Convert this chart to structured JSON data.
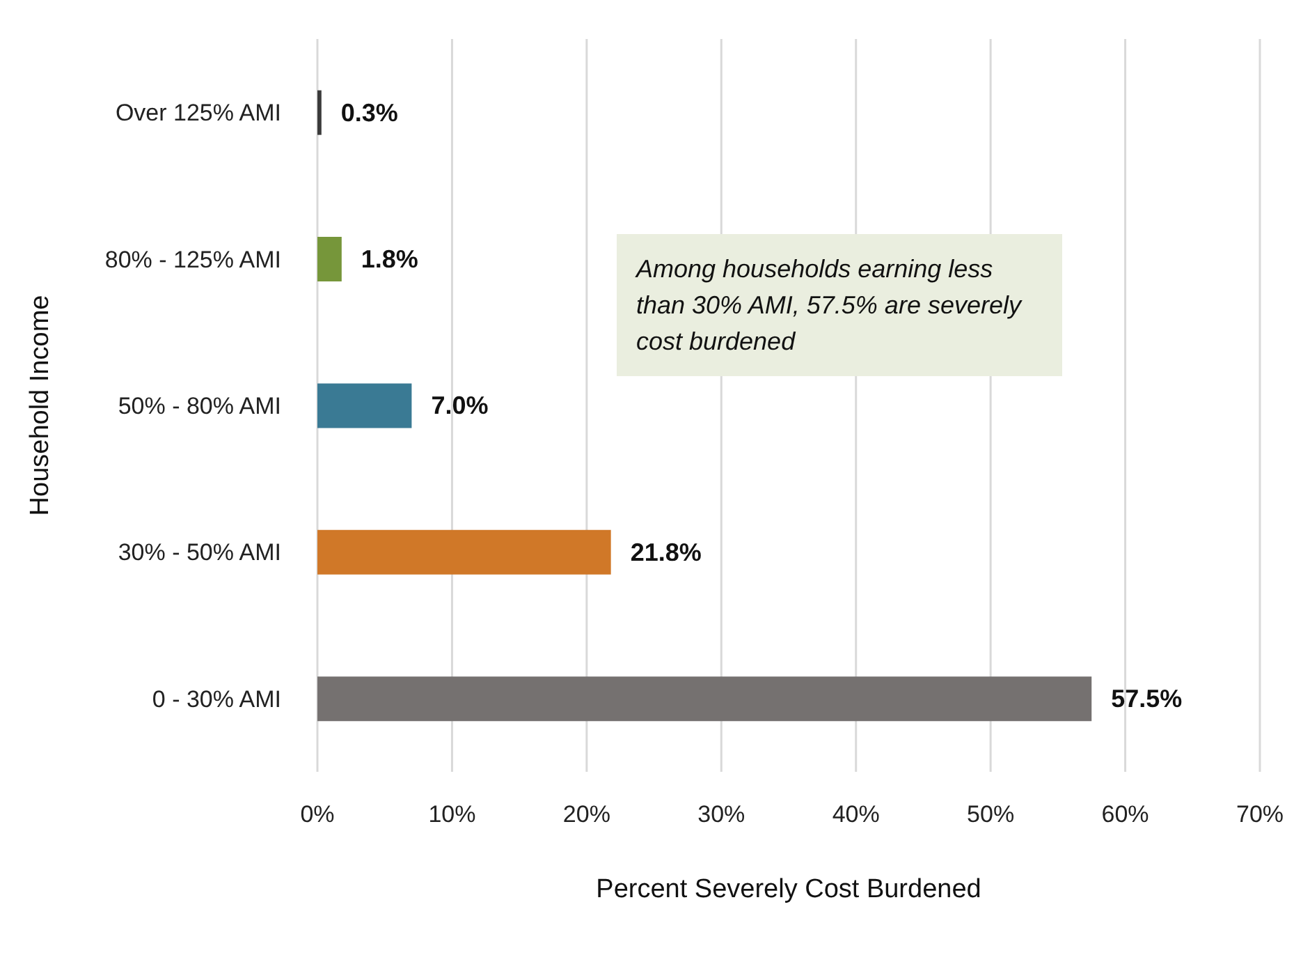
{
  "chart_data": {
    "type": "bar",
    "orientation": "horizontal",
    "xlabel": "Percent Severely Cost Burdened",
    "ylabel": "Household Income",
    "categories": [
      "Over 125% AMI",
      "80% - 125% AMI",
      "50% - 80% AMI",
      "30% - 50% AMI",
      "0 - 30% AMI"
    ],
    "values": [
      0.3,
      1.8,
      7.0,
      21.8,
      57.5
    ],
    "colors": [
      "#3b3b3b",
      "#76963a",
      "#3a7a94",
      "#d07828",
      "#757170"
    ],
    "value_labels": [
      "0.3%",
      "1.8%",
      "7.0%",
      "21.8%",
      "57.5%"
    ],
    "xlim": [
      0,
      70
    ],
    "xticks": [
      {
        "value": 0,
        "label": "0%"
      },
      {
        "value": 10,
        "label": "10%"
      },
      {
        "value": 20,
        "label": "20%"
      },
      {
        "value": 30,
        "label": "30%"
      },
      {
        "value": 40,
        "label": "40%"
      },
      {
        "value": 50,
        "label": "50%"
      },
      {
        "value": 60,
        "label": "60%"
      },
      {
        "value": 70,
        "label": "70%"
      }
    ],
    "grid": "x",
    "annotations": [
      "Among households earning less than 30% AMI, 57.5% are severely cost burdened"
    ]
  }
}
